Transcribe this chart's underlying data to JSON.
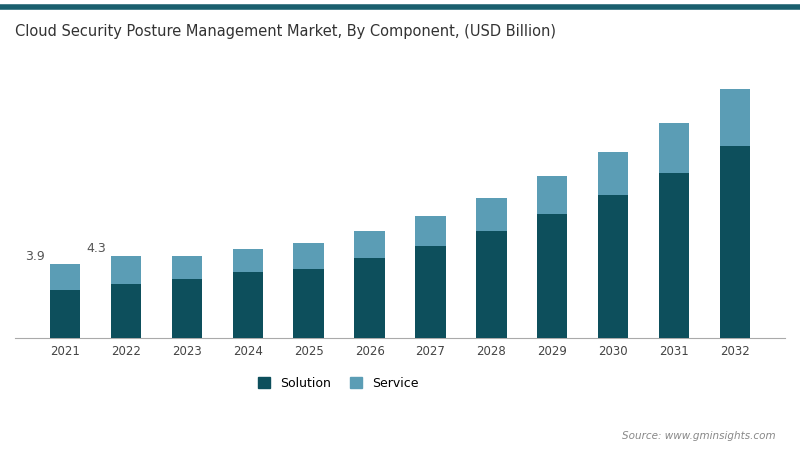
{
  "title": "Cloud Security Posture Management Market, By Component, (USD Billion)",
  "years": [
    2021,
    2022,
    2023,
    2024,
    2025,
    2026,
    2027,
    2028,
    2029,
    2030,
    2031,
    2032
  ],
  "solution": [
    2.55,
    2.85,
    3.1,
    3.45,
    3.65,
    4.2,
    4.85,
    5.6,
    6.5,
    7.5,
    8.7,
    10.1
  ],
  "service": [
    1.35,
    1.45,
    1.2,
    1.25,
    1.35,
    1.45,
    1.55,
    1.75,
    2.0,
    2.3,
    2.6,
    3.0
  ],
  "solution_color": "#0d4f5c",
  "service_color": "#5b9db5",
  "background_color": "#ffffff",
  "annotation_2021": "3.9",
  "annotation_2022": "4.3",
  "source_text": "Source: www.gminsights.com",
  "top_border_color": "#1a5f6e",
  "ylim": [
    0,
    15
  ],
  "bar_width": 0.5
}
